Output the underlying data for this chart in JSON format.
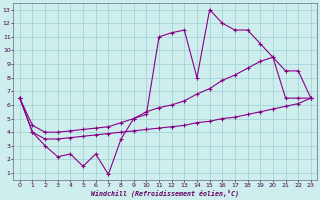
{
  "background_color": "#ceeeed",
  "line_color": "#880088",
  "xlim": [
    -0.5,
    23.5
  ],
  "ylim": [
    0.5,
    13.5
  ],
  "xticks": [
    0,
    1,
    2,
    3,
    4,
    5,
    6,
    7,
    8,
    9,
    10,
    11,
    12,
    13,
    14,
    15,
    16,
    17,
    18,
    19,
    20,
    21,
    22,
    23
  ],
  "yticks": [
    1,
    2,
    3,
    4,
    5,
    6,
    7,
    8,
    9,
    10,
    11,
    12,
    13
  ],
  "grid_color": "#9dcfcf",
  "xlabel": "Windchill (Refroidissement éolien,°C)",
  "line1_x": [
    0,
    1,
    2,
    3,
    4,
    5,
    6,
    7,
    8,
    9,
    10,
    11,
    12,
    13,
    14,
    15,
    16,
    17,
    18,
    19,
    20,
    21,
    22,
    23
  ],
  "line1_y": [
    6.5,
    4.0,
    3.0,
    2.2,
    2.4,
    1.5,
    2.4,
    0.9,
    3.5,
    5.0,
    5.3,
    11.0,
    11.3,
    11.5,
    8.0,
    13.0,
    12.0,
    11.5,
    11.5,
    10.5,
    9.5,
    8.5,
    8.5,
    6.5
  ],
  "line2_x": [
    0,
    1,
    2,
    3,
    4,
    5,
    6,
    7,
    8,
    9,
    10,
    11,
    12,
    13,
    14,
    15,
    16,
    17,
    18,
    19,
    20,
    21,
    22,
    23
  ],
  "line2_y": [
    6.5,
    4.5,
    4.0,
    4.0,
    4.1,
    4.2,
    4.3,
    4.4,
    4.7,
    5.0,
    5.5,
    5.8,
    6.0,
    6.3,
    6.8,
    7.2,
    7.8,
    8.2,
    8.7,
    9.2,
    9.5,
    6.5,
    6.5,
    6.5
  ],
  "line3_x": [
    0,
    1,
    2,
    3,
    4,
    5,
    6,
    7,
    8,
    9,
    10,
    11,
    12,
    13,
    14,
    15,
    16,
    17,
    18,
    19,
    20,
    21,
    22,
    23
  ],
  "line3_y": [
    6.5,
    4.0,
    3.5,
    3.5,
    3.6,
    3.7,
    3.8,
    3.9,
    4.0,
    4.1,
    4.2,
    4.3,
    4.4,
    4.5,
    4.7,
    4.8,
    5.0,
    5.1,
    5.3,
    5.5,
    5.7,
    5.9,
    6.1,
    6.5
  ]
}
